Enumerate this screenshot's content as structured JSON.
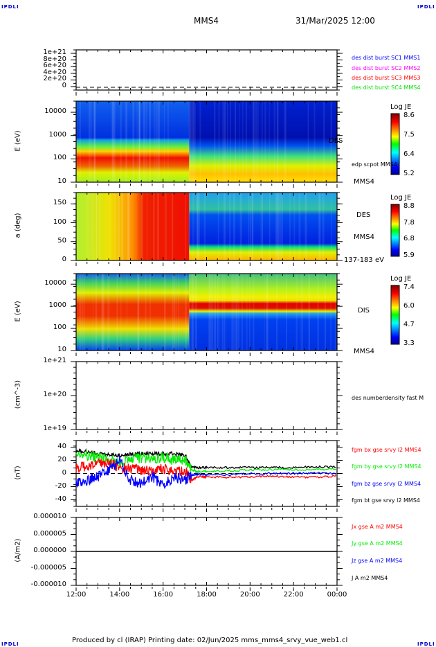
{
  "header": {
    "corner_left": "IPDLI",
    "corner_right": "IPDLI",
    "spacecraft": "MMS4",
    "datetime": "31/Mar/2025 12:00"
  },
  "footer": {
    "text": "Produced by cl (IRAP)   Printing date: 02/Jun/2025   mms_mms4_srvy_vue_web1.cl",
    "corner_left": "IPDLI",
    "corner_right": "IPDLI"
  },
  "chart_data": [
    {
      "type": "line",
      "panel": "des-dist-burst",
      "yticks": [
        "1e+21",
        "8e+20",
        "6e+20",
        "4e+20",
        "2e+20",
        "0"
      ],
      "ylim": [
        0,
        1e+21
      ],
      "legend": [
        {
          "label": "des dist burst SC1 MMS1",
          "color": "#0000ff"
        },
        {
          "label": "des dist burst SC2 MMS2",
          "color": "#ff00ff"
        },
        {
          "label": "des dist burst SC3 MMS3",
          "color": "#ff0000"
        },
        {
          "label": "des dist burst SC4 MMS4",
          "color": "#00dd00"
        }
      ],
      "series": []
    },
    {
      "type": "heatmap",
      "panel": "des-energy",
      "ylabel": "E (eV)",
      "yticks": [
        "10000",
        "1000",
        "100",
        "10"
      ],
      "ylim": [
        10,
        30000
      ],
      "yscale": "log",
      "labels": [
        "DES",
        "edp scpot MMS4",
        "MMS4"
      ],
      "colorbar": {
        "title": "Log JE",
        "ticks": [
          "8.6",
          "7.5",
          "6.4",
          "5.2"
        ],
        "range": [
          5.2,
          8.8
        ]
      }
    },
    {
      "type": "heatmap",
      "panel": "des-pitch",
      "ylabel": "a (deg)",
      "yticks": [
        "150",
        "100",
        "50",
        "0"
      ],
      "ylim": [
        0,
        180
      ],
      "labels": [
        "DES",
        "MMS4",
        "137-183 eV"
      ],
      "colorbar": {
        "title": "Log JE",
        "ticks": [
          "8.8",
          "7.8",
          "6.8",
          "5.9"
        ],
        "range": [
          5.9,
          9.2
        ]
      }
    },
    {
      "type": "heatmap",
      "panel": "dis-energy",
      "ylabel": "E (eV)",
      "yticks": [
        "10000",
        "1000",
        "100",
        "10"
      ],
      "ylim": [
        10,
        30000
      ],
      "yscale": "log",
      "labels": [
        "DIS",
        "MMS4"
      ],
      "colorbar": {
        "title": "Log JE",
        "ticks": [
          "7.4",
          "6.0",
          "4.7",
          "3.3"
        ],
        "range": [
          3.3,
          7.6
        ]
      }
    },
    {
      "type": "line",
      "panel": "des-density",
      "ylabel": "(cm^-3)",
      "yticks": [
        "1e+21",
        "1e+20",
        "1e+19"
      ],
      "ylim": [
        1e+19,
        1e+21
      ],
      "legend": [
        {
          "label": "des numberdensity fast M",
          "color": "#000000"
        }
      ],
      "series": []
    },
    {
      "type": "line",
      "panel": "fgm",
      "ylabel": "(nT)",
      "yticks": [
        "40",
        "20",
        "0",
        "-20",
        "-40"
      ],
      "ylim": [
        -50,
        50
      ],
      "legend": [
        {
          "label": "fgm bx gse srvy l2 MMS4",
          "color": "#ff0000"
        },
        {
          "label": "fgm by gse srvy l2 MMS4",
          "color": "#00ee00"
        },
        {
          "label": "fgm bz gse srvy l2 MMS4",
          "color": "#0000ff"
        },
        {
          "label": "fgm bt gse srvy l2 MMS4",
          "color": "#000000"
        }
      ],
      "x": [
        12,
        12.5,
        13,
        13.5,
        14,
        14.5,
        15,
        15.5,
        16,
        16.5,
        17,
        17.3,
        17.6,
        18,
        19,
        20,
        21,
        22,
        23,
        24
      ],
      "series": [
        {
          "name": "bx",
          "values": [
            8,
            12,
            15,
            16,
            10,
            7,
            5,
            6,
            8,
            2,
            5,
            -10,
            -5,
            -5,
            -6,
            -5,
            -4,
            -5,
            -6,
            -4
          ]
        },
        {
          "name": "by",
          "values": [
            30,
            28,
            24,
            20,
            14,
            22,
            24,
            22,
            24,
            20,
            22,
            5,
            3,
            3,
            4,
            5,
            6,
            6,
            6,
            7
          ]
        },
        {
          "name": "bz",
          "values": [
            -15,
            -10,
            -5,
            5,
            20,
            -10,
            -15,
            -5,
            -18,
            -5,
            -10,
            -2,
            -1,
            -2,
            -2,
            0,
            0,
            0,
            1,
            0
          ]
        },
        {
          "name": "bt",
          "values": [
            35,
            33,
            30,
            28,
            28,
            29,
            30,
            30,
            30,
            30,
            28,
            10,
            9,
            9,
            9,
            9,
            9,
            9,
            10,
            10
          ]
        }
      ]
    },
    {
      "type": "line",
      "panel": "current",
      "ylabel": "(A/m2)",
      "yticks": [
        "0.000010",
        "0.000005",
        "0.000000",
        "-0.000005",
        "-0.000010"
      ],
      "ylim": [
        -1e-05,
        1e-05
      ],
      "legend": [
        {
          "label": "Jx gse A m2 MMS4",
          "color": "#ff0000"
        },
        {
          "label": "Jy gse A m2 MMS4",
          "color": "#00ee00"
        },
        {
          "label": "Jz gse A m2 MMS4",
          "color": "#0000ff"
        },
        {
          "label": "J A m2 MMS4",
          "color": "#000000"
        }
      ],
      "x": [
        12,
        24
      ],
      "series": [
        {
          "name": "J",
          "values": [
            0,
            0
          ]
        }
      ]
    }
  ],
  "xaxis": {
    "ticks": [
      "12:00",
      "14:00",
      "16:00",
      "18:00",
      "20:00",
      "22:00",
      "00:00"
    ],
    "range": [
      12,
      24
    ]
  }
}
